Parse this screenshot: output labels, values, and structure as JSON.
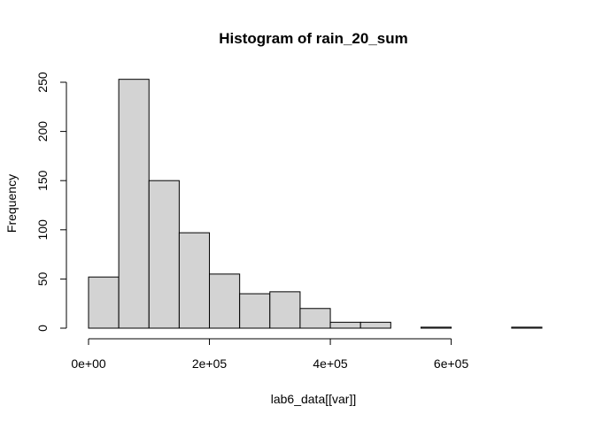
{
  "chart_data": {
    "type": "bar",
    "subtype": "histogram",
    "title": "Histogram of rain_20_sum",
    "xlabel": "lab6_data[[var]]",
    "ylabel": "Frequency",
    "bin_edges": [
      0,
      50000,
      100000,
      150000,
      200000,
      250000,
      300000,
      350000,
      400000,
      450000,
      500000,
      550000,
      600000,
      650000,
      700000,
      750000
    ],
    "values": [
      52,
      253,
      150,
      97,
      55,
      35,
      37,
      20,
      6,
      6,
      0,
      1,
      0,
      0,
      1
    ],
    "xlim": [
      0,
      750000
    ],
    "ylim": [
      0,
      250
    ],
    "x_ticks": [
      0,
      200000,
      400000,
      600000
    ],
    "x_tick_labels": [
      "0e+00",
      "2e+05",
      "4e+05",
      "6e+05"
    ],
    "y_ticks": [
      0,
      50,
      100,
      150,
      200,
      250
    ],
    "y_tick_labels": [
      "0",
      "50",
      "100",
      "150",
      "200",
      "250"
    ],
    "grid": false,
    "legend": "none",
    "bar_fill": "#d3d3d3",
    "bar_stroke": "#000000"
  }
}
